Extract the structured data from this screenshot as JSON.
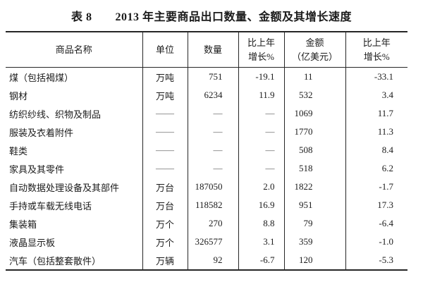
{
  "page": {
    "background_color": "#ffffff",
    "text_color": "#1b1b1b",
    "rule_color": "#262626",
    "dash_color": "#555555"
  },
  "title": "表 8　　2013 年主要商品出口数量、金额及其增长速度",
  "table": {
    "headers": [
      "商品名称",
      "单位",
      "数量",
      "比上年\n增长%",
      "金额\n（亿美元）",
      "比上年\n增长%"
    ],
    "rows": [
      {
        "name": "煤（包括褐煤）",
        "unit": "万吨",
        "quantity": "751",
        "quantity_growth": "-19.1",
        "amount": "11",
        "amount_growth": "-33.1"
      },
      {
        "name": "钢材",
        "unit": "万吨",
        "quantity": "6234",
        "quantity_growth": "11.9",
        "amount": "532",
        "amount_growth": "3.4"
      },
      {
        "name": "纺织纱线、织物及制品",
        "unit": "——",
        "quantity": "—",
        "quantity_growth": "—",
        "amount": "1069",
        "amount_growth": "11.7"
      },
      {
        "name": "服装及衣着附件",
        "unit": "——",
        "quantity": "—",
        "quantity_growth": "—",
        "amount": "1770",
        "amount_growth": "11.3"
      },
      {
        "name": "鞋类",
        "unit": "——",
        "quantity": "—",
        "quantity_growth": "—",
        "amount": "508",
        "amount_growth": "8.4"
      },
      {
        "name": "家具及其零件",
        "unit": "——",
        "quantity": "—",
        "quantity_growth": "—",
        "amount": "518",
        "amount_growth": "6.2"
      },
      {
        "name": "自动数据处理设备及其部件",
        "unit": "万台",
        "quantity": "187050",
        "quantity_growth": "2.0",
        "amount": "1822",
        "amount_growth": "-1.7"
      },
      {
        "name": "手持或车载无线电话",
        "unit": "万台",
        "quantity": "118582",
        "quantity_growth": "16.9",
        "amount": "951",
        "amount_growth": "17.3"
      },
      {
        "name": "集装箱",
        "unit": "万个",
        "quantity": "270",
        "quantity_growth": "8.8",
        "amount": "79",
        "amount_growth": "-6.4"
      },
      {
        "name": "液晶显示板",
        "unit": "万个",
        "quantity": "326577",
        "quantity_growth": "3.1",
        "amount": "359",
        "amount_growth": "-1.0"
      },
      {
        "name": "汽车（包括整套散件）",
        "unit": "万辆",
        "quantity": "92",
        "quantity_growth": "-6.7",
        "amount": "120",
        "amount_growth": "-5.3"
      }
    ]
  }
}
